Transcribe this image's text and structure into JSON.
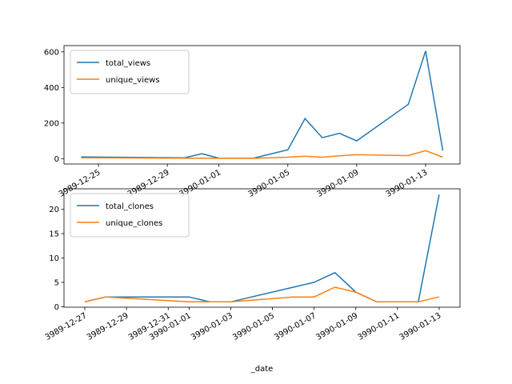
{
  "chart_data": [
    {
      "type": "line",
      "x": [
        "3989-12-24",
        "3989-12-30",
        "3989-12-31",
        "3990-01-01",
        "3990-01-03",
        "3990-01-05",
        "3990-01-06",
        "3990-01-07",
        "3990-01-08",
        "3990-01-09",
        "3990-01-12",
        "3990-01-13",
        "3990-01-14"
      ],
      "series": [
        {
          "name": "total_views",
          "color": "#1f77b4",
          "values": [
            10,
            5,
            28,
            3,
            3,
            50,
            225,
            118,
            142,
            100,
            305,
            605,
            45
          ]
        },
        {
          "name": "unique_views",
          "color": "#ff7f0e",
          "values": [
            5,
            3,
            3,
            2,
            2,
            8,
            14,
            8,
            16,
            22,
            17,
            45,
            8
          ]
        }
      ],
      "xlim": [
        "3989-12-23",
        "3990-01-15"
      ],
      "xticks": [
        "3989-12-25",
        "3989-12-29",
        "3990-01-01",
        "3990-01-05",
        "3990-01-09",
        "3990-01-13"
      ],
      "ylim": [
        -30,
        635
      ],
      "yticks": [
        0,
        200,
        400,
        600
      ],
      "legend": "upper left"
    },
    {
      "type": "line",
      "x": [
        "3989-12-27",
        "3989-12-28",
        "3990-01-01",
        "3990-01-02",
        "3990-01-03",
        "3990-01-06",
        "3990-01-07",
        "3990-01-08",
        "3990-01-09",
        "3990-01-10",
        "3990-01-12",
        "3990-01-13"
      ],
      "series": [
        {
          "name": "total_clones",
          "color": "#1f77b4",
          "values": [
            1,
            2,
            2,
            1,
            1,
            4,
            5,
            7,
            3,
            1,
            1,
            23
          ]
        },
        {
          "name": "unique_clones",
          "color": "#ff7f0e",
          "values": [
            1,
            2,
            1,
            1,
            1,
            2,
            2,
            4,
            3,
            1,
            1,
            2
          ]
        }
      ],
      "xlim": [
        "3989-12-26",
        "3990-01-14"
      ],
      "xticks": [
        "3989-12-27",
        "3989-12-29",
        "3989-12-31",
        "3990-01-01",
        "3990-01-03",
        "3990-01-05",
        "3990-01-07",
        "3990-01-09",
        "3990-01-11",
        "3990-01-13"
      ],
      "ylim": [
        -0.1,
        24.2
      ],
      "yticks": [
        0,
        5,
        10,
        15,
        20
      ],
      "xlabel": "_date",
      "legend": "upper left"
    }
  ]
}
